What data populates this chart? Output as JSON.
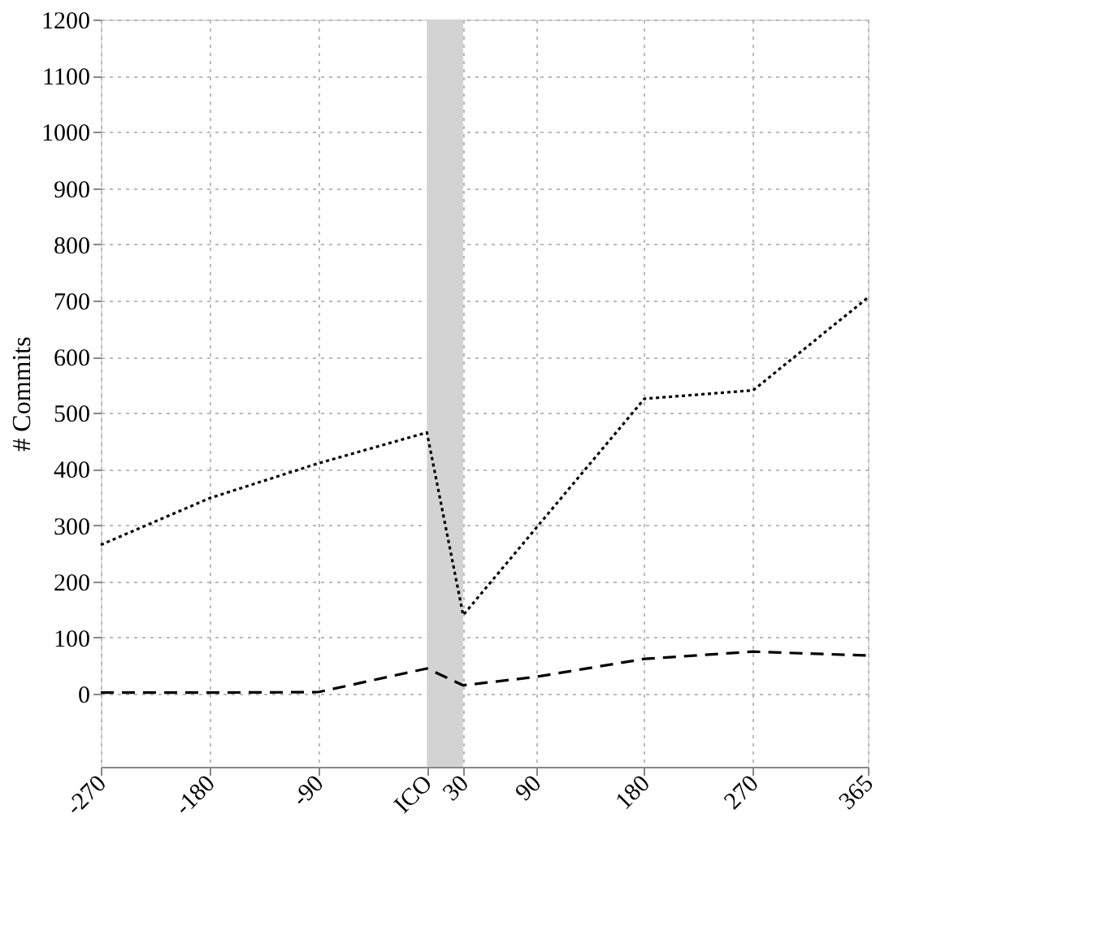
{
  "chart_data": {
    "type": "line",
    "ylabel": "# Commits",
    "xlim": [
      -270,
      365
    ],
    "xticks": [
      -270,
      -180,
      -90,
      {
        "value": 0,
        "label": "ICO"
      },
      30,
      90,
      180,
      270,
      365
    ],
    "ylim": [
      -130,
      1200
    ],
    "yticks": [
      0,
      100,
      200,
      300,
      400,
      500,
      600,
      700,
      800,
      900,
      1000,
      1100,
      1200
    ],
    "grid": true,
    "bands": [
      {
        "axis": "x",
        "from": 0,
        "to": 30,
        "color": "#d3d3d3"
      }
    ],
    "series": [
      {
        "color": "#000000",
        "line_style": "dotted",
        "x": [
          -270,
          -180,
          -90,
          0,
          30,
          180,
          270,
          365
        ],
        "values": [
          265,
          348,
          410,
          465,
          140,
          525,
          540,
          705
        ]
      },
      {
        "color": "#000000",
        "line_style": "dashed",
        "x": [
          -270,
          -180,
          -90,
          0,
          30,
          90,
          180,
          270,
          365
        ],
        "values": [
          2,
          2,
          3,
          45,
          15,
          30,
          62,
          75,
          68
        ]
      }
    ]
  }
}
